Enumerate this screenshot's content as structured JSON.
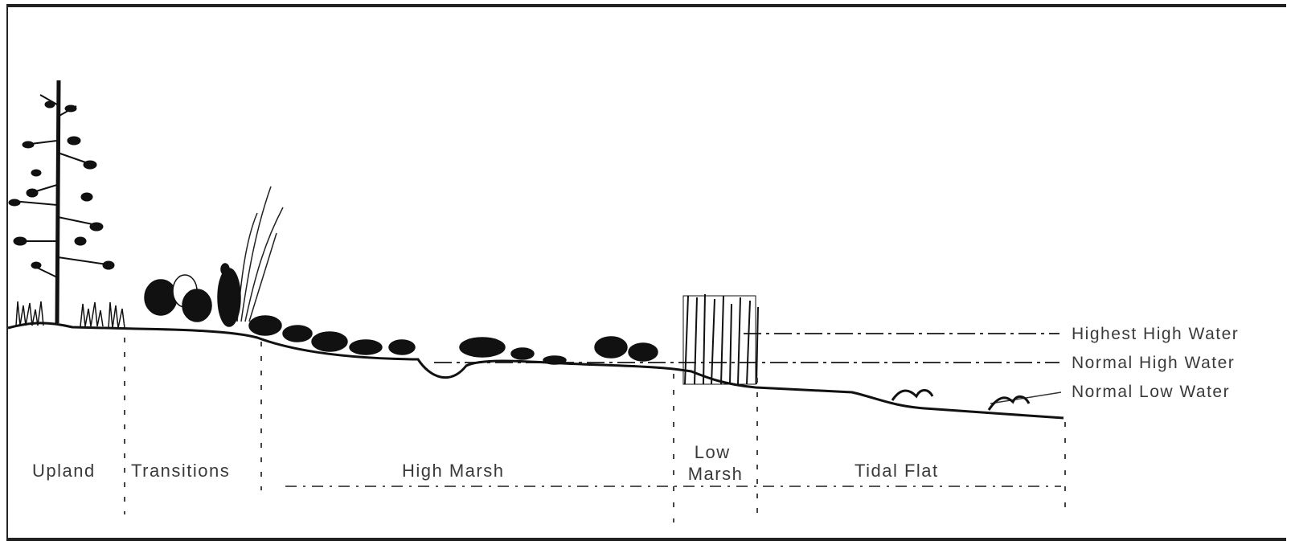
{
  "zones": [
    {
      "id": "upland",
      "label": "Upland"
    },
    {
      "id": "transition",
      "label": "Transitions"
    },
    {
      "id": "high-marsh",
      "label": "High Marsh"
    },
    {
      "id": "low-marsh",
      "label": "Low\nMarsh"
    },
    {
      "id": "tidal-flat",
      "label": "Tidal Flat"
    }
  ],
  "water_levels": [
    {
      "id": "highest-high-water",
      "label": "Highest High Water"
    },
    {
      "id": "normal-high-water",
      "label": "Normal High Water"
    },
    {
      "id": "normal-low-water",
      "label": "Normal Low Water"
    }
  ],
  "colors": {
    "ink": "#1a1a1a",
    "text": "#3a3a3a",
    "frame": "#222222",
    "background": "#ffffff"
  }
}
